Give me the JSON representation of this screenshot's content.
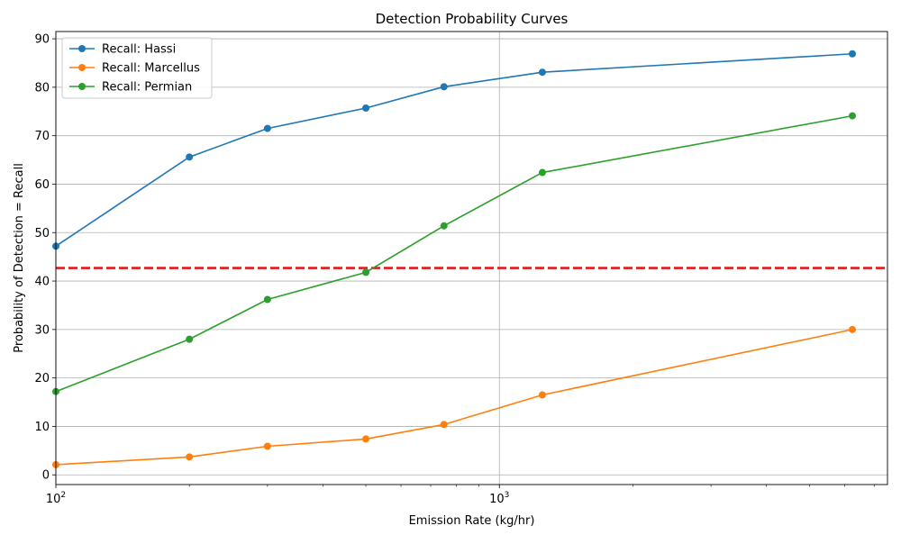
{
  "chart_data": {
    "type": "line",
    "title": "Detection Probability Curves",
    "xlabel": "Emission Rate (kg/hr)",
    "ylabel": "Probability of Detection = Recall",
    "xscale": "log",
    "xlim": [
      100,
      7500
    ],
    "ylim": [
      -2,
      91.5
    ],
    "x": [
      100,
      200,
      300,
      500,
      750,
      1250,
      6250
    ],
    "xticks": [
      {
        "value": 100,
        "base": "10",
        "exp": "2"
      },
      {
        "value": 1000,
        "base": "10",
        "exp": "3"
      }
    ],
    "yticks": [
      0,
      10,
      20,
      30,
      40,
      50,
      60,
      70,
      80,
      90
    ],
    "grid": true,
    "legend_position": "top-left",
    "reference_line": {
      "y": 42.7,
      "color": "#e31a1c",
      "style": "dashed"
    },
    "series": [
      {
        "name": "Recall: Hassi",
        "color": "#1f77b4",
        "values": [
          47.2,
          65.6,
          71.5,
          75.7,
          80.1,
          83.1,
          86.9
        ]
      },
      {
        "name": "Recall: Marcellus",
        "color": "#ff7f0e",
        "values": [
          2.1,
          3.7,
          5.9,
          7.4,
          10.4,
          16.5,
          30.0
        ]
      },
      {
        "name": "Recall: Permian",
        "color": "#2ca02c",
        "values": [
          17.2,
          28.0,
          36.2,
          41.8,
          51.4,
          62.4,
          74.1
        ]
      }
    ]
  }
}
